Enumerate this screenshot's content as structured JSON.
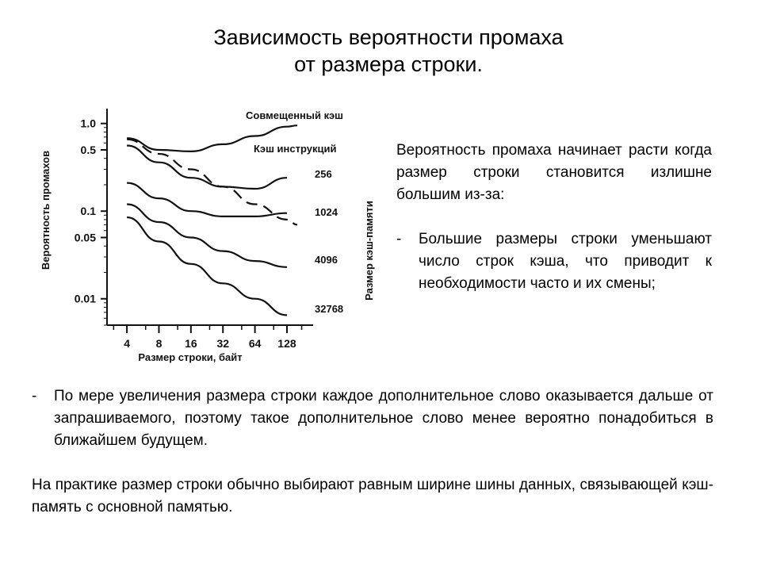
{
  "slide": {
    "title_line1": "Зависимость вероятности промаха",
    "title_line2": "от размера строки.",
    "side_paragraph": "Вероятность промаха начинает расти когда размер строки становится излишне большим из-за:",
    "side_bullet_dash": "-",
    "side_bullet": "Большие размеры строки уменьшают число строк кэша, что приводит к необходимости часто и их смены;",
    "bottom_bullet_dash": "-",
    "bottom_bullet": "По мере увеличения размера строки каждое дополнительное слово оказывается дальше от запрашиваемого, поэтому такое дополнительное слово менее вероятно понадобиться в ближайшем будущем.",
    "bottom_paragraph": "На практике размер строки обычно выбирают равным ширине шины данных, связывающей кэш-память с основной памятью."
  },
  "chart_data": {
    "type": "line",
    "xlabel": "Размер строки, байт",
    "ylabel": "Вероятность промахов",
    "ylabel_right": "Размер кэш-памяти",
    "x_ticks": [
      4,
      8,
      16,
      32,
      64,
      128
    ],
    "x_tick_labels": [
      "4",
      "8",
      "16",
      "32",
      "64",
      "128"
    ],
    "y_ticks": [
      1.0,
      0.5,
      0.1,
      0.05,
      0.01
    ],
    "y_tick_labels": [
      "1.0",
      "0.5",
      "0.1",
      "0.05",
      "0.01"
    ],
    "x_scale": "log2",
    "y_scale": "log",
    "xlim": [
      2.6,
      190
    ],
    "ylim": [
      0.005,
      1.25
    ],
    "series": [
      {
        "name": "Совмещенный кэш",
        "style": "solid",
        "x": [
          4,
          8,
          16,
          32,
          64,
          128,
          160
        ],
        "y": [
          0.68,
          0.5,
          0.48,
          0.58,
          0.72,
          0.92,
          0.95
        ]
      },
      {
        "name": "Кэш инструкций",
        "style": "dashed",
        "x": [
          4,
          8,
          16,
          32,
          64,
          128,
          160
        ],
        "y": [
          0.66,
          0.45,
          0.3,
          0.19,
          0.12,
          0.08,
          0.07
        ]
      },
      {
        "name": "256",
        "style": "solid",
        "x": [
          4,
          8,
          16,
          32,
          64,
          128
        ],
        "y": [
          0.56,
          0.36,
          0.24,
          0.19,
          0.18,
          0.24
        ]
      },
      {
        "name": "1024",
        "style": "solid",
        "x": [
          4,
          8,
          16,
          32,
          64,
          128
        ],
        "y": [
          0.21,
          0.14,
          0.1,
          0.087,
          0.087,
          0.095
        ]
      },
      {
        "name": "4096",
        "style": "solid",
        "x": [
          4,
          8,
          16,
          32,
          64,
          128
        ],
        "y": [
          0.12,
          0.075,
          0.05,
          0.035,
          0.027,
          0.023
        ]
      },
      {
        "name": "32768",
        "style": "solid",
        "x": [
          4,
          8,
          16,
          32,
          64,
          128
        ],
        "y": [
          0.085,
          0.045,
          0.025,
          0.015,
          0.01,
          0.0065
        ]
      }
    ]
  }
}
